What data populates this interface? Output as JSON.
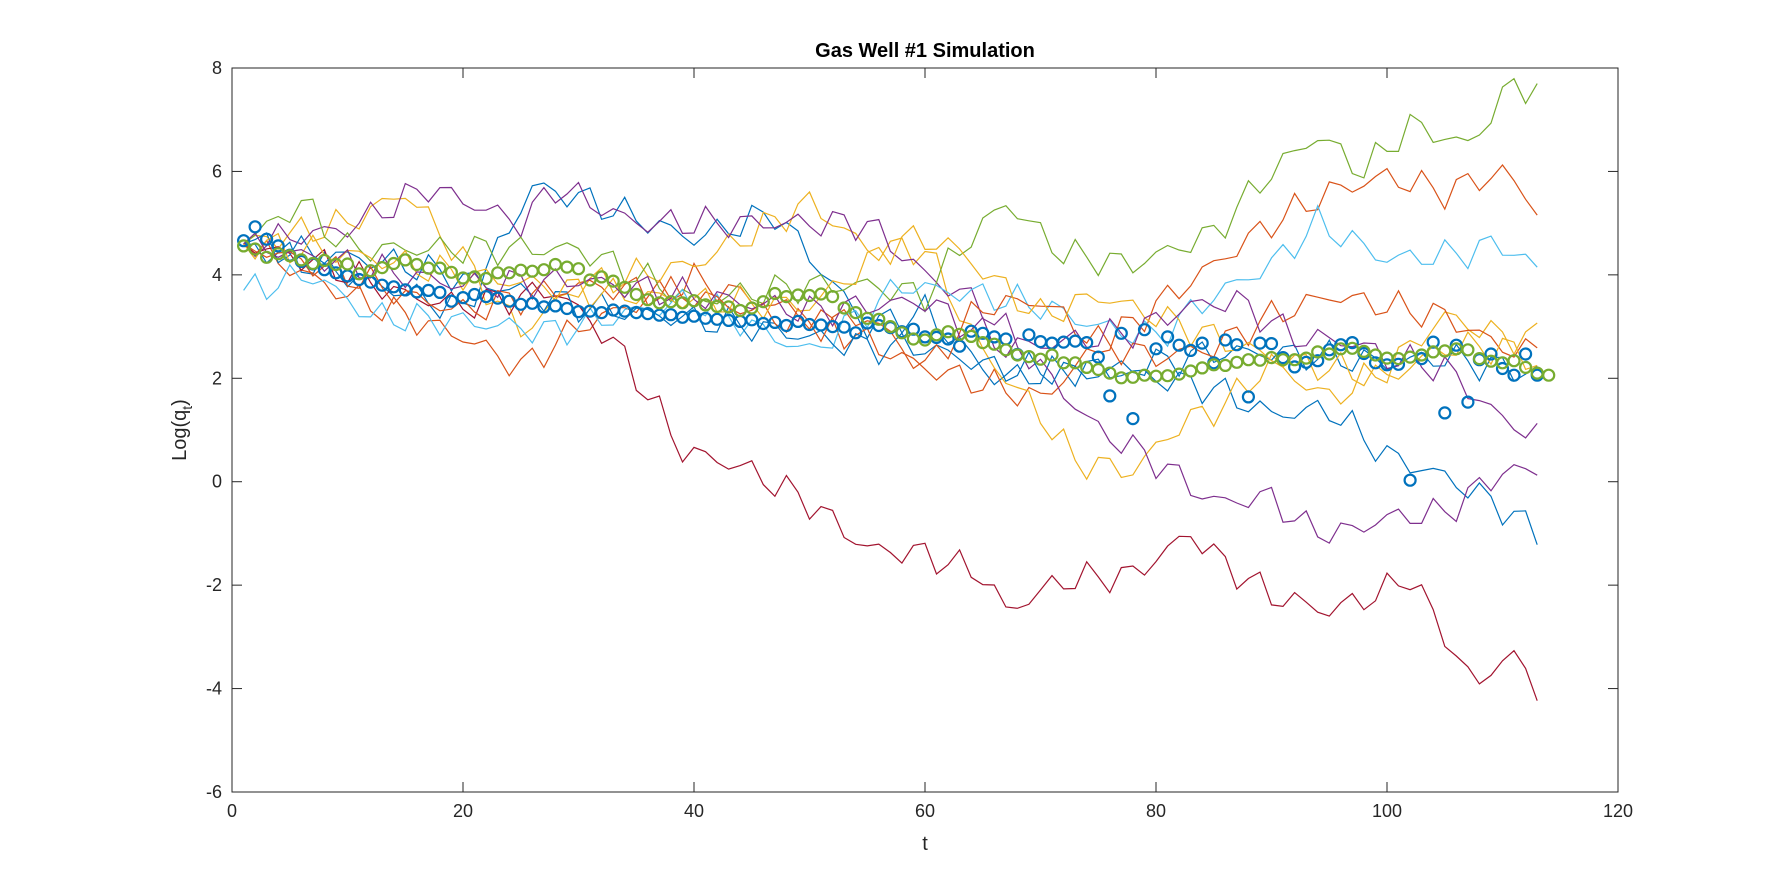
{
  "chart_data": {
    "type": "line",
    "title": "Gas Well #1 Simulation",
    "xlabel": "t",
    "ylabel_main": "Log(q",
    "ylabel_sub": "t",
    "ylabel_close": ")",
    "xlim": [
      0,
      120
    ],
    "ylim": [
      -6,
      8
    ],
    "xticks": [
      0,
      20,
      40,
      60,
      80,
      100,
      120
    ],
    "yticks": [
      -6,
      -4,
      -2,
      0,
      2,
      4,
      6,
      8
    ],
    "grid": false,
    "legend": "none",
    "x_start": 1,
    "x_end": 113,
    "simulation_paths": [
      {
        "color": "#0072BD",
        "anchors": [
          [
            1,
            4.6
          ],
          [
            10,
            4.0
          ],
          [
            20,
            3.3
          ],
          [
            26,
            5.7
          ],
          [
            30,
            5.5
          ],
          [
            40,
            4.7
          ],
          [
            47,
            5.2
          ],
          [
            55,
            3.0
          ],
          [
            60,
            3.3
          ],
          [
            66,
            2.0
          ],
          [
            75,
            2.2
          ],
          [
            85,
            1.8
          ],
          [
            90,
            1.3
          ],
          [
            95,
            1.4
          ],
          [
            100,
            0.5
          ],
          [
            105,
            0.1
          ],
          [
            110,
            -0.5
          ],
          [
            113,
            -1.0
          ]
        ]
      },
      {
        "color": "#D95319",
        "anchors": [
          [
            1,
            4.6
          ],
          [
            10,
            3.6
          ],
          [
            20,
            2.8
          ],
          [
            25,
            2.2
          ],
          [
            30,
            3.0
          ],
          [
            40,
            3.9
          ],
          [
            50,
            3.2
          ],
          [
            60,
            2.2
          ],
          [
            70,
            1.6
          ],
          [
            75,
            2.6
          ],
          [
            80,
            3.4
          ],
          [
            85,
            4.2
          ],
          [
            90,
            5.0
          ],
          [
            95,
            5.6
          ],
          [
            100,
            5.9
          ],
          [
            105,
            5.6
          ],
          [
            110,
            6.0
          ],
          [
            113,
            5.3
          ]
        ]
      },
      {
        "color": "#EDB120",
        "anchors": [
          [
            1,
            4.6
          ],
          [
            10,
            5.0
          ],
          [
            15,
            5.6
          ],
          [
            20,
            4.3
          ],
          [
            25,
            2.9
          ],
          [
            30,
            3.8
          ],
          [
            40,
            4.2
          ],
          [
            50,
            5.4
          ],
          [
            55,
            4.5
          ],
          [
            60,
            4.5
          ],
          [
            65,
            2.5
          ],
          [
            70,
            1.3
          ],
          [
            73,
            0.4
          ],
          [
            78,
            0.2
          ],
          [
            82,
            1.1
          ],
          [
            86,
            1.5
          ],
          [
            90,
            2.3
          ],
          [
            95,
            1.6
          ],
          [
            100,
            2.2
          ],
          [
            105,
            3.2
          ],
          [
            110,
            2.8
          ],
          [
            113,
            2.8
          ]
        ]
      },
      {
        "color": "#7E2F8E",
        "anchors": [
          [
            1,
            4.6
          ],
          [
            10,
            4.9
          ],
          [
            17,
            5.7
          ],
          [
            25,
            5.0
          ],
          [
            28,
            5.7
          ],
          [
            35,
            5.0
          ],
          [
            45,
            5.0
          ],
          [
            55,
            5.0
          ],
          [
            60,
            4.0
          ],
          [
            65,
            3.4
          ],
          [
            70,
            2.2
          ],
          [
            75,
            1.0
          ],
          [
            80,
            0.4
          ],
          [
            85,
            -0.4
          ],
          [
            90,
            -0.3
          ],
          [
            93,
            -0.9
          ],
          [
            96,
            -1.0
          ],
          [
            100,
            -0.7
          ],
          [
            105,
            -0.6
          ],
          [
            110,
            0.2
          ],
          [
            113,
            0.2
          ]
        ]
      },
      {
        "color": "#77AC30",
        "anchors": [
          [
            1,
            4.6
          ],
          [
            6,
            5.4
          ],
          [
            10,
            4.5
          ],
          [
            20,
            4.5
          ],
          [
            30,
            4.5
          ],
          [
            40,
            3.5
          ],
          [
            50,
            3.8
          ],
          [
            55,
            3.8
          ],
          [
            60,
            3.6
          ],
          [
            63,
            4.5
          ],
          [
            67,
            5.4
          ],
          [
            72,
            4.4
          ],
          [
            78,
            4.2
          ],
          [
            85,
            4.8
          ],
          [
            90,
            6.0
          ],
          [
            94,
            6.7
          ],
          [
            98,
            6.0
          ],
          [
            102,
            6.9
          ],
          [
            107,
            6.5
          ],
          [
            111,
            7.7
          ],
          [
            113,
            7.6
          ]
        ]
      },
      {
        "color": "#4DBEEE",
        "anchors": [
          [
            1,
            3.7
          ],
          [
            7,
            4.0
          ],
          [
            12,
            3.2
          ],
          [
            20,
            3.1
          ],
          [
            28,
            2.9
          ],
          [
            35,
            3.3
          ],
          [
            40,
            3.5
          ],
          [
            50,
            2.5
          ],
          [
            58,
            3.8
          ],
          [
            65,
            3.6
          ],
          [
            70,
            3.4
          ],
          [
            75,
            3.0
          ],
          [
            80,
            2.8
          ],
          [
            85,
            3.6
          ],
          [
            90,
            4.2
          ],
          [
            94,
            5.0
          ],
          [
            100,
            4.3
          ],
          [
            106,
            4.4
          ],
          [
            110,
            4.6
          ],
          [
            113,
            4.1
          ]
        ]
      },
      {
        "color": "#A2142F",
        "anchors": [
          [
            1,
            4.6
          ],
          [
            8,
            4.2
          ],
          [
            15,
            3.6
          ],
          [
            20,
            3.4
          ],
          [
            28,
            3.7
          ],
          [
            33,
            2.7
          ],
          [
            36,
            1.7
          ],
          [
            39,
            0.6
          ],
          [
            44,
            0.3
          ],
          [
            50,
            -0.4
          ],
          [
            55,
            -1.3
          ],
          [
            60,
            -1.4
          ],
          [
            65,
            -1.8
          ],
          [
            67,
            -2.5
          ],
          [
            72,
            -1.9
          ],
          [
            78,
            -1.8
          ],
          [
            83,
            -1.0
          ],
          [
            86,
            -1.6
          ],
          [
            90,
            -2.2
          ],
          [
            95,
            -2.5
          ],
          [
            100,
            -2.1
          ],
          [
            102,
            -1.8
          ],
          [
            105,
            -3.0
          ],
          [
            108,
            -4.0
          ],
          [
            110,
            -3.3
          ],
          [
            113,
            -3.9
          ]
        ]
      },
      {
        "color": "#0072BD",
        "anchors": [
          [
            1,
            4.6
          ],
          [
            15,
            4.2
          ],
          [
            30,
            3.4
          ],
          [
            45,
            3.0
          ],
          [
            55,
            2.6
          ],
          [
            60,
            2.6
          ],
          [
            66,
            2.2
          ],
          [
            75,
            2.1
          ],
          [
            80,
            2.3
          ],
          [
            85,
            2.5
          ],
          [
            90,
            2.5
          ],
          [
            100,
            2.3
          ],
          [
            105,
            2.4
          ],
          [
            110,
            2.2
          ],
          [
            113,
            2.1
          ]
        ]
      },
      {
        "color": "#D95319",
        "anchors": [
          [
            1,
            4.6
          ],
          [
            10,
            4.0
          ],
          [
            15,
            3.6
          ],
          [
            20,
            3.3
          ],
          [
            30,
            3.8
          ],
          [
            40,
            3.6
          ],
          [
            50,
            3.0
          ],
          [
            55,
            3.2
          ],
          [
            60,
            2.2
          ],
          [
            65,
            3.4
          ],
          [
            70,
            3.5
          ],
          [
            75,
            2.7
          ],
          [
            80,
            2.4
          ],
          [
            85,
            2.6
          ],
          [
            90,
            3.2
          ],
          [
            95,
            3.6
          ],
          [
            100,
            3.4
          ],
          [
            105,
            3.2
          ],
          [
            110,
            2.6
          ],
          [
            113,
            2.5
          ]
        ]
      },
      {
        "color": "#EDB120",
        "anchors": [
          [
            1,
            4.6
          ],
          [
            10,
            4.4
          ],
          [
            20,
            4.0
          ],
          [
            30,
            3.7
          ],
          [
            40,
            3.5
          ],
          [
            50,
            3.4
          ],
          [
            58,
            4.7
          ],
          [
            62,
            4.6
          ],
          [
            66,
            3.9
          ],
          [
            70,
            3.2
          ],
          [
            75,
            3.6
          ],
          [
            80,
            3.2
          ],
          [
            85,
            2.8
          ],
          [
            90,
            2.4
          ],
          [
            95,
            2.2
          ],
          [
            100,
            2.0
          ],
          [
            105,
            2.6
          ],
          [
            110,
            2.6
          ],
          [
            113,
            2.3
          ]
        ]
      },
      {
        "color": "#7E2F8E",
        "anchors": [
          [
            1,
            4.6
          ],
          [
            10,
            4.2
          ],
          [
            20,
            3.8
          ],
          [
            30,
            3.9
          ],
          [
            40,
            3.6
          ],
          [
            50,
            3.3
          ],
          [
            60,
            3.5
          ],
          [
            63,
            3.1
          ],
          [
            67,
            2.6
          ],
          [
            72,
            2.7
          ],
          [
            78,
            2.9
          ],
          [
            83,
            3.4
          ],
          [
            87,
            3.5
          ],
          [
            92,
            2.8
          ],
          [
            97,
            2.7
          ],
          [
            100,
            2.4
          ],
          [
            105,
            2.2
          ],
          [
            110,
            1.2
          ],
          [
            113,
            0.9
          ]
        ]
      }
    ],
    "scatter_series": [
      {
        "color": "#0072BD",
        "y": [
          4.66,
          4.93,
          4.69,
          4.56,
          4.38,
          4.26,
          4.21,
          4.1,
          4.04,
          3.98,
          3.91,
          3.86,
          3.8,
          3.77,
          3.71,
          3.67,
          3.7,
          3.66,
          3.49,
          3.56,
          3.62,
          3.58,
          3.55,
          3.49,
          3.43,
          3.45,
          3.38,
          3.4,
          3.35,
          3.29,
          3.3,
          3.27,
          3.32,
          3.3,
          3.27,
          3.25,
          3.22,
          3.23,
          3.18,
          3.2,
          3.16,
          3.14,
          3.12,
          3.1,
          3.13,
          3.06,
          3.08,
          3.02,
          3.1,
          3.04,
          3.03,
          3.0,
          2.99,
          2.88,
          3.07,
          3.02,
          2.98,
          2.9,
          2.95,
          2.8,
          2.79,
          2.76,
          2.62,
          2.91,
          2.87,
          2.8,
          2.76,
          2.46,
          2.84,
          2.71,
          2.68,
          2.7,
          2.72,
          2.69,
          2.41,
          1.66,
          2.87,
          1.22,
          2.94,
          2.57,
          2.8,
          2.64,
          2.54,
          2.68,
          2.3,
          2.74,
          2.65,
          1.64,
          2.68,
          2.67,
          2.4,
          2.22,
          2.31,
          2.34,
          2.55,
          2.65,
          2.69,
          2.48,
          2.3,
          2.26,
          2.27,
          0.03,
          2.38,
          2.7,
          1.33,
          2.64,
          1.54,
          2.36,
          2.47,
          2.19,
          2.06,
          2.47,
          2.06
        ]
      },
      {
        "color": "#77AC30",
        "y": [
          4.56,
          4.5,
          4.34,
          4.41,
          4.37,
          4.29,
          4.22,
          4.28,
          4.2,
          4.21,
          4.02,
          4.08,
          4.14,
          4.22,
          4.29,
          4.2,
          4.13,
          4.13,
          4.05,
          3.94,
          3.96,
          3.93,
          4.04,
          4.04,
          4.09,
          4.07,
          4.1,
          4.2,
          4.15,
          4.12,
          3.9,
          3.96,
          3.88,
          3.76,
          3.62,
          3.52,
          3.46,
          3.48,
          3.46,
          3.5,
          3.42,
          3.39,
          3.38,
          3.31,
          3.36,
          3.48,
          3.64,
          3.58,
          3.61,
          3.6,
          3.63,
          3.58,
          3.36,
          3.27,
          3.16,
          3.14,
          3.0,
          2.88,
          2.76,
          2.74,
          2.84,
          2.9,
          2.85,
          2.81,
          2.69,
          2.66,
          2.55,
          2.45,
          2.42,
          2.37,
          2.45,
          2.3,
          2.3,
          2.21,
          2.17,
          2.1,
          2.01,
          2.02,
          2.06,
          2.04,
          2.05,
          2.08,
          2.14,
          2.2,
          2.26,
          2.25,
          2.31,
          2.36,
          2.35,
          2.4,
          2.36,
          2.36,
          2.39,
          2.51,
          2.47,
          2.57,
          2.58,
          2.52,
          2.45,
          2.39,
          2.38,
          2.41,
          2.45,
          2.51,
          2.53,
          2.57,
          2.55,
          2.38,
          2.33,
          2.3,
          2.34,
          2.21,
          2.1,
          2.06
        ]
      }
    ]
  }
}
